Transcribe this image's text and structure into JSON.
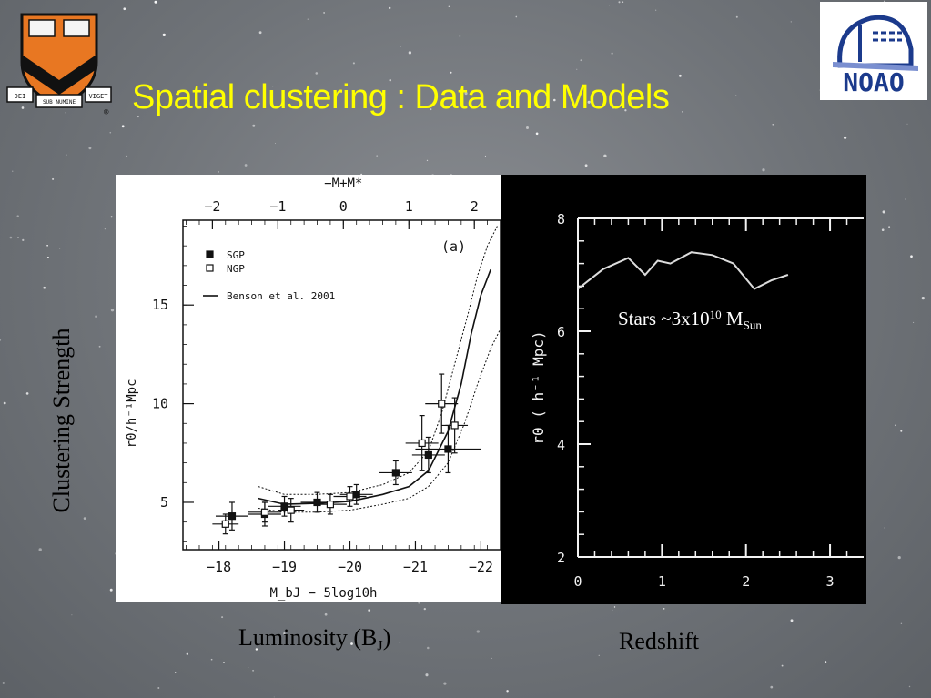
{
  "slide": {
    "title": "Spatial clustering : Data and Models",
    "y_caption": "Clustering Strength",
    "x_caption_left": {
      "text": "Luminosity (B",
      "sub": "J",
      "tail": ")"
    },
    "x_caption_right": "Redshift",
    "logos": {
      "princeton_motto": [
        "DEI",
        "SUB NUMINE",
        "VIGET"
      ],
      "princeton_mark": "®",
      "noao_text": "NOAO"
    }
  },
  "chart_data": [
    {
      "type": "scatter",
      "panel_label": "(a)",
      "xlabel": "M_bJ − 5log10h",
      "xlabel_top": "−M+M*",
      "ylabel": "r0/h⁻¹Mpc",
      "xlim": [
        -17.45,
        -22.3
      ],
      "ylim": [
        2.6,
        19.3
      ],
      "x_ticks": [
        "−18",
        "−19",
        "−20",
        "−21",
        "−22"
      ],
      "x_top_ticks": [
        "−2",
        "−1",
        "0",
        "1",
        "2"
      ],
      "y_ticks": [
        "5",
        "10",
        "15"
      ],
      "legend": [
        "SGP",
        "NGP",
        "Benson et al. 2001"
      ],
      "legend_position": "top-left",
      "series": [
        {
          "name": "SGP",
          "marker": "filled-square",
          "x": [
            -18.2,
            -18.7,
            -19.0,
            -19.5,
            -20.1,
            -20.7,
            -21.2,
            -21.5
          ],
          "y": [
            4.3,
            4.4,
            4.8,
            5.0,
            5.4,
            6.5,
            7.4,
            7.7
          ],
          "xerr": [
            0.25,
            0.25,
            0.25,
            0.25,
            0.25,
            0.25,
            0.25,
            0.5
          ],
          "yerr": [
            0.7,
            0.6,
            0.5,
            0.5,
            0.5,
            0.6,
            0.9,
            1.2
          ]
        },
        {
          "name": "NGP",
          "marker": "open-square",
          "x": [
            -18.1,
            -18.7,
            -19.1,
            -19.7,
            -20.0,
            -21.1,
            -21.4,
            -21.6
          ],
          "y": [
            3.9,
            4.5,
            4.6,
            4.9,
            5.3,
            8.0,
            10.0,
            8.9
          ],
          "xerr": [
            0.2,
            0.25,
            0.2,
            0.25,
            0.25,
            0.25,
            0.25,
            0.2
          ],
          "yerr": [
            0.5,
            0.5,
            0.6,
            0.5,
            0.5,
            1.4,
            1.5,
            1.4
          ]
        },
        {
          "name": "Benson et al. 2001",
          "style": "solid",
          "x": [
            -18.6,
            -19.0,
            -19.5,
            -20.0,
            -20.5,
            -20.9,
            -21.2,
            -21.5,
            -21.7,
            -21.85,
            -22.0,
            -22.15
          ],
          "y": [
            5.2,
            4.9,
            4.95,
            5.05,
            5.4,
            5.8,
            6.6,
            8.6,
            11.0,
            13.5,
            15.5,
            16.8
          ]
        },
        {
          "name": "model upper bound",
          "style": "dotted",
          "x": [
            -18.6,
            -19.0,
            -19.5,
            -20.0,
            -20.5,
            -20.9,
            -21.2,
            -21.4,
            -21.6,
            -21.8,
            -21.95,
            -22.1,
            -22.25
          ],
          "y": [
            5.8,
            5.4,
            5.4,
            5.5,
            5.9,
            6.5,
            7.6,
            9.5,
            12.0,
            14.5,
            16.5,
            18.0,
            19.0
          ]
        },
        {
          "name": "model lower bound",
          "style": "dotted",
          "x": [
            -18.6,
            -19.0,
            -19.5,
            -20.0,
            -20.5,
            -20.9,
            -21.2,
            -21.5,
            -21.75,
            -21.95,
            -22.15,
            -22.3
          ],
          "y": [
            4.7,
            4.5,
            4.5,
            4.6,
            4.9,
            5.2,
            5.8,
            7.0,
            9.0,
            11.0,
            12.8,
            13.8
          ]
        }
      ]
    },
    {
      "type": "line",
      "annotation": {
        "text": "Stars ~3x10",
        "sup": "10",
        "mid": " M",
        "sub": "Sun"
      },
      "xlabel": "",
      "ylabel": "r0 ( h⁻¹ Mpc)",
      "xlim": [
        0,
        3.4
      ],
      "ylim": [
        2,
        8
      ],
      "x_ticks": [
        "0",
        "1",
        "2",
        "3"
      ],
      "y_ticks": [
        "2",
        "4",
        "6",
        "8"
      ],
      "series": [
        {
          "x": [
            0.0,
            0.3,
            0.6,
            0.8,
            0.95,
            1.1,
            1.35,
            1.6,
            1.85,
            2.1,
            2.3,
            2.5
          ],
          "y": [
            6.75,
            7.1,
            7.3,
            7.0,
            7.25,
            7.2,
            7.4,
            7.35,
            7.2,
            6.75,
            6.9,
            7.0
          ]
        }
      ]
    }
  ]
}
